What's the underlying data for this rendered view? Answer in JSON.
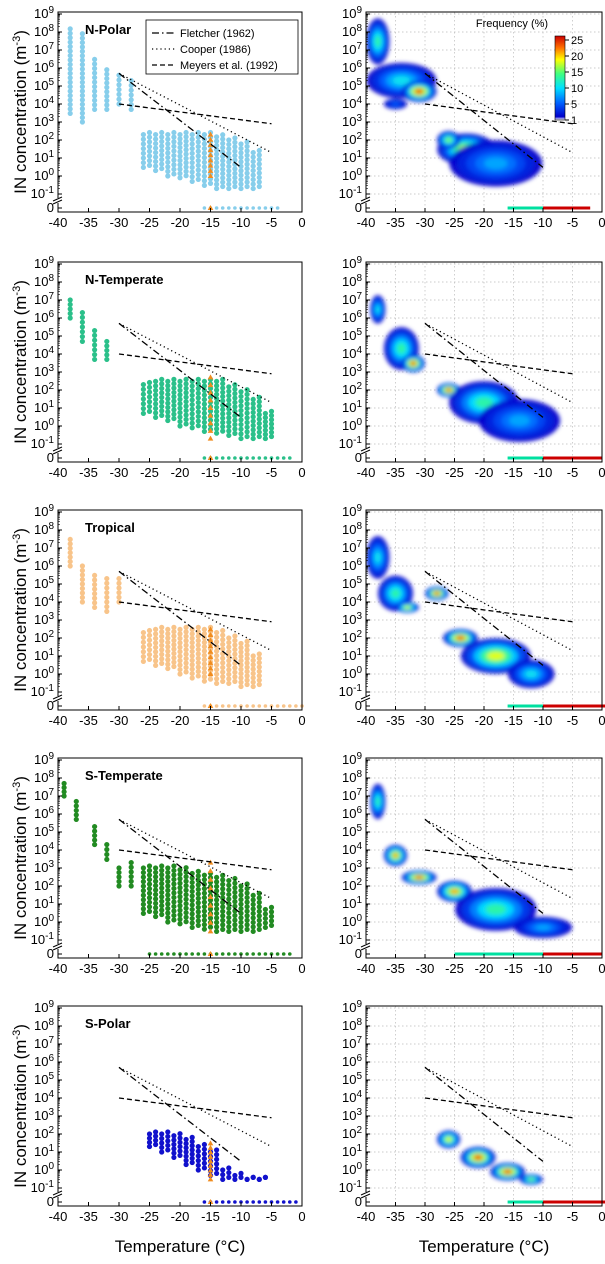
{
  "figure": {
    "ylabel": "IN concentration (m",
    "ylabel_sup": "-3",
    "ylabel_close": ")",
    "xlabel": "Temperature (°C)",
    "colorbar_title": "Frequency (%)",
    "colorbar_ticks": [
      "25",
      "20",
      "15",
      "10",
      "5",
      "1"
    ],
    "legend": [
      {
        "name": "Fletcher (1962)",
        "style": "dashdot"
      },
      {
        "name": "Cooper (1986)",
        "style": "dotted"
      },
      {
        "name": "Meyers et al. (1992)",
        "style": "dashed"
      }
    ]
  },
  "chart_data": {
    "type": "scatter",
    "x_axis": {
      "ticks": [
        "-40",
        "-35",
        "-30",
        "-25",
        "-20",
        "-15",
        "-10",
        "-5",
        "0"
      ],
      "range": [
        -40,
        0
      ]
    },
    "y_axis": {
      "scale": "log",
      "range": [
        0.1,
        1000000000
      ],
      "zero_level": "0",
      "ticks": [
        "10^9",
        "10^8",
        "10^7",
        "10^6",
        "10^5",
        "10^4",
        "10^3",
        "10^2",
        "10^1",
        "10^0",
        "10^-1",
        "0"
      ]
    },
    "grid_right_column": true,
    "reference_lines": {
      "fletcher": {
        "x": [
          -30,
          -10
        ],
        "y": [
          500000,
          3
        ]
      },
      "cooper": {
        "x": [
          -30,
          -5
        ],
        "y": [
          500000,
          20
        ]
      },
      "meyers": {
        "x": [
          -30,
          -5
        ],
        "y": [
          10000,
          800
        ]
      }
    },
    "panels": [
      {
        "region": "N-Polar",
        "color": "#87CEEB",
        "scatter_columns": [
          {
            "x": -38,
            "ymin": 3000,
            "ymax": 150000000
          },
          {
            "x": -36,
            "ymin": 1000,
            "ymax": 80000000
          },
          {
            "x": -34,
            "ymin": 5000,
            "ymax": 3000000
          },
          {
            "x": -32,
            "ymin": 5000,
            "ymax": 800000
          },
          {
            "x": -30,
            "ymin": 10000,
            "ymax": 400000
          },
          {
            "x": -28,
            "ymin": 5000,
            "ymax": 200000
          },
          {
            "x": -26,
            "ymin": 3,
            "ymax": 200
          },
          {
            "x": -24,
            "ymin": 2,
            "ymax": 200
          },
          {
            "x": -22,
            "ymin": 1,
            "ymax": 200
          },
          {
            "x": -20,
            "ymin": 0.8,
            "ymax": 200
          },
          {
            "x": -18,
            "ymin": 0.5,
            "ymax": 200
          },
          {
            "x": -16,
            "ymin": 0.3,
            "ymax": 200
          },
          {
            "x": -14,
            "ymin": 0.2,
            "ymax": 150
          },
          {
            "x": -12,
            "ymin": 0.2,
            "ymax": 100
          },
          {
            "x": -10,
            "ymin": 0.2,
            "ymax": 60
          },
          {
            "x": -8,
            "ymin": 0.2,
            "ymax": 20
          }
        ],
        "zero_row": [
          -16,
          -4
        ],
        "orange": {
          "x": -15,
          "ymin": 1,
          "ymax": 200
        },
        "heat_blobs": [
          {
            "x": -38,
            "y": 30000000,
            "rx": 2,
            "ry": 1.3,
            "v": 0.5
          },
          {
            "x": -34,
            "y": 200000,
            "rx": 6,
            "ry": 1,
            "v": 0.4
          },
          {
            "x": -31,
            "y": 50000,
            "rx": 3,
            "ry": 0.6,
            "v": 0.9
          },
          {
            "x": -35,
            "y": 10000,
            "rx": 2,
            "ry": 0.3,
            "v": 0.2
          },
          {
            "x": -23,
            "y": 30,
            "rx": 5,
            "ry": 0.9,
            "v": 0.7
          },
          {
            "x": -18,
            "y": 5,
            "rx": 8,
            "ry": 1.3,
            "v": 0.3
          },
          {
            "x": -26,
            "y": 100,
            "rx": 2,
            "ry": 0.5,
            "v": 0.6
          }
        ]
      },
      {
        "region": "N-Temperate",
        "color": "#2BC08A",
        "scatter_columns": [
          {
            "x": -38,
            "ymin": 1000000,
            "ymax": 10000000
          },
          {
            "x": -36,
            "ymin": 50000,
            "ymax": 2000000
          },
          {
            "x": -34,
            "ymin": 5000,
            "ymax": 200000
          },
          {
            "x": -32,
            "ymin": 5000,
            "ymax": 50000
          },
          {
            "x": -26,
            "ymin": 5,
            "ymax": 200
          },
          {
            "x": -24,
            "ymin": 3,
            "ymax": 300
          },
          {
            "x": -22,
            "ymin": 2,
            "ymax": 300
          },
          {
            "x": -20,
            "ymin": 1,
            "ymax": 300
          },
          {
            "x": -18,
            "ymin": 0.8,
            "ymax": 300
          },
          {
            "x": -16,
            "ymin": 0.5,
            "ymax": 300
          },
          {
            "x": -14,
            "ymin": 0.4,
            "ymax": 300
          },
          {
            "x": -12,
            "ymin": 0.3,
            "ymax": 150
          },
          {
            "x": -10,
            "ymin": 0.2,
            "ymax": 80
          },
          {
            "x": -8,
            "ymin": 0.2,
            "ymax": 30
          },
          {
            "x": -6,
            "ymin": 0.2,
            "ymax": 5
          }
        ],
        "zero_row": [
          -16,
          -2
        ],
        "orange": {
          "x": -15,
          "ymin": 0.2,
          "ymax": 500
        },
        "heat_blobs": [
          {
            "x": -38,
            "y": 3000000,
            "rx": 1.3,
            "ry": 0.8,
            "v": 0.4
          },
          {
            "x": -34,
            "y": 20000,
            "rx": 3,
            "ry": 1.2,
            "v": 0.5
          },
          {
            "x": -32,
            "y": 3000,
            "rx": 2,
            "ry": 0.5,
            "v": 0.9
          },
          {
            "x": -26,
            "y": 100,
            "rx": 2,
            "ry": 0.4,
            "v": 0.9
          },
          {
            "x": -20,
            "y": 20,
            "rx": 6,
            "ry": 1.2,
            "v": 0.5
          },
          {
            "x": -14,
            "y": 2,
            "rx": 7,
            "ry": 1.2,
            "v": 0.3
          }
        ]
      },
      {
        "region": "Tropical",
        "color": "#F8C48A",
        "scatter_columns": [
          {
            "x": -38,
            "ymin": 1000000,
            "ymax": 30000000
          },
          {
            "x": -36,
            "ymin": 10000,
            "ymax": 1000000
          },
          {
            "x": -34,
            "ymin": 5000,
            "ymax": 300000
          },
          {
            "x": -32,
            "ymin": 3000,
            "ymax": 200000
          },
          {
            "x": -30,
            "ymin": 10000,
            "ymax": 200000
          },
          {
            "x": -26,
            "ymin": 5,
            "ymax": 200
          },
          {
            "x": -24,
            "ymin": 3,
            "ymax": 300
          },
          {
            "x": -22,
            "ymin": 2,
            "ymax": 300
          },
          {
            "x": -20,
            "ymin": 1,
            "ymax": 300
          },
          {
            "x": -18,
            "ymin": 0.6,
            "ymax": 300
          },
          {
            "x": -16,
            "ymin": 0.4,
            "ymax": 300
          },
          {
            "x": -14,
            "ymin": 0.3,
            "ymax": 200
          },
          {
            "x": -12,
            "ymin": 0.3,
            "ymax": 100
          },
          {
            "x": -10,
            "ymin": 0.2,
            "ymax": 50
          },
          {
            "x": -8,
            "ymin": 0.2,
            "ymax": 10
          }
        ],
        "zero_row": [
          -16,
          0
        ],
        "orange": {
          "x": -15,
          "ymin": 1,
          "ymax": 300
        },
        "heat_blobs": [
          {
            "x": -38,
            "y": 3000000,
            "rx": 2,
            "ry": 1.2,
            "v": 0.4
          },
          {
            "x": -35,
            "y": 30000,
            "rx": 3,
            "ry": 1,
            "v": 0.5
          },
          {
            "x": -28,
            "y": 30000,
            "rx": 2,
            "ry": 0.4,
            "v": 0.9
          },
          {
            "x": -33,
            "y": 5000,
            "rx": 2,
            "ry": 0.3,
            "v": 0.7
          },
          {
            "x": -24,
            "y": 100,
            "rx": 3,
            "ry": 0.5,
            "v": 0.9
          },
          {
            "x": -18,
            "y": 10,
            "rx": 6,
            "ry": 1,
            "v": 0.7
          },
          {
            "x": -12,
            "y": 1,
            "rx": 4,
            "ry": 0.8,
            "v": 0.4
          }
        ]
      },
      {
        "region": "S-Temperate",
        "color": "#228B22",
        "scatter_columns": [
          {
            "x": -39,
            "ymin": 10000000,
            "ymax": 50000000
          },
          {
            "x": -37,
            "ymin": 500000,
            "ymax": 5000000
          },
          {
            "x": -34,
            "ymin": 20000,
            "ymax": 200000
          },
          {
            "x": -32,
            "ymin": 3000,
            "ymax": 20000
          },
          {
            "x": -30,
            "ymin": 100,
            "ymax": 1000
          },
          {
            "x": -28,
            "ymin": 100,
            "ymax": 2000
          },
          {
            "x": -26,
            "ymin": 3,
            "ymax": 1000
          },
          {
            "x": -24,
            "ymin": 2,
            "ymax": 1000
          },
          {
            "x": -22,
            "ymin": 1,
            "ymax": 1000
          },
          {
            "x": -20,
            "ymin": 0.8,
            "ymax": 800
          },
          {
            "x": -18,
            "ymin": 0.5,
            "ymax": 500
          },
          {
            "x": -16,
            "ymin": 0.4,
            "ymax": 400
          },
          {
            "x": -14,
            "ymin": 0.3,
            "ymax": 300
          },
          {
            "x": -12,
            "ymin": 0.3,
            "ymax": 200
          },
          {
            "x": -10,
            "ymin": 0.3,
            "ymax": 100
          },
          {
            "x": -8,
            "ymin": 0.3,
            "ymax": 30
          },
          {
            "x": -6,
            "ymin": 0.5,
            "ymax": 5
          }
        ],
        "zero_row": [
          -25,
          -2
        ],
        "orange": {
          "x": -15,
          "ymin": 0.3,
          "ymax": 2000
        },
        "heat_blobs": [
          {
            "x": -38,
            "y": 5000000,
            "rx": 1.3,
            "ry": 1,
            "v": 0.5
          },
          {
            "x": -35,
            "y": 5000,
            "rx": 2,
            "ry": 0.6,
            "v": 0.8
          },
          {
            "x": -31,
            "y": 300,
            "rx": 3,
            "ry": 0.4,
            "v": 0.9
          },
          {
            "x": -25,
            "y": 50,
            "rx": 3,
            "ry": 0.6,
            "v": 0.8
          },
          {
            "x": -18,
            "y": 5,
            "rx": 7,
            "ry": 1.2,
            "v": 0.5
          },
          {
            "x": -10,
            "y": 0.5,
            "rx": 5,
            "ry": 0.6,
            "v": 0.3
          }
        ]
      },
      {
        "region": "S-Polar",
        "color": "#1111CC",
        "scatter_columns": [
          {
            "x": -25,
            "ymin": 20,
            "ymax": 100
          },
          {
            "x": -23,
            "ymin": 10,
            "ymax": 100
          },
          {
            "x": -21,
            "ymin": 5,
            "ymax": 80
          },
          {
            "x": -19,
            "ymin": 2,
            "ymax": 50
          },
          {
            "x": -17,
            "ymin": 1,
            "ymax": 20
          },
          {
            "x": -15,
            "ymin": 0.5,
            "ymax": 10
          },
          {
            "x": -13,
            "ymin": 0.3,
            "ymax": 1
          },
          {
            "x": -11,
            "ymin": 0.3,
            "ymax": 0.5
          },
          {
            "x": -9,
            "ymin": 0.3,
            "ymax": 0.3
          },
          {
            "x": -7,
            "ymin": 0.3,
            "ymax": 0.3
          }
        ],
        "zero_row": [
          -16,
          -1
        ],
        "orange": {
          "x": -15,
          "ymin": 0.3,
          "ymax": 30
        },
        "heat_blobs": [
          {
            "x": -26,
            "y": 50,
            "rx": 2,
            "ry": 0.5,
            "v": 0.7
          },
          {
            "x": -21,
            "y": 5,
            "rx": 3,
            "ry": 0.6,
            "v": 0.9
          },
          {
            "x": -16,
            "y": 0.8,
            "rx": 3,
            "ry": 0.5,
            "v": 0.9
          },
          {
            "x": -12,
            "y": 0.3,
            "rx": 2,
            "ry": 0.3,
            "v": 0.6
          }
        ]
      }
    ]
  }
}
